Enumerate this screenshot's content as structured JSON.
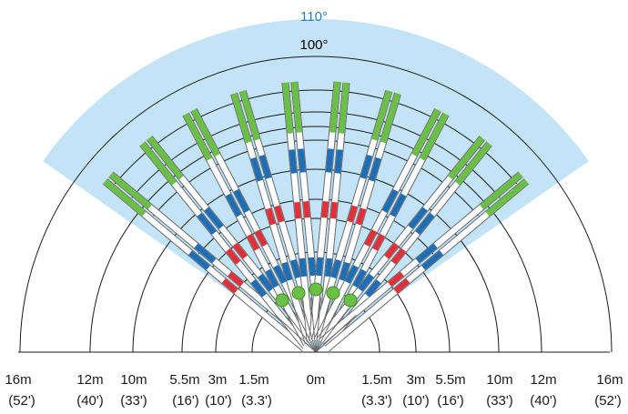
{
  "angles": {
    "outer": {
      "label": "110°",
      "color": "#2a7fc0"
    },
    "inner": {
      "label": "100°",
      "color": "#000000"
    }
  },
  "colors": {
    "fan_fill": "#c3e3f7",
    "green": "#6abf45",
    "blue": "#1f6db5",
    "red": "#e0303a",
    "arc": "#1a1a1a",
    "beam_outline": "#6a6a6a",
    "dot_fill": "#6abf45",
    "dot_stroke": "#3f8a2a"
  },
  "scale_left": [
    {
      "meters": "16m",
      "feet": "(52')"
    },
    {
      "meters": "12m",
      "feet": "(40')"
    },
    {
      "meters": "10m",
      "feet": "(33')"
    },
    {
      "meters": "5.5m",
      "feet": "(16')"
    },
    {
      "meters": "3m",
      "feet": "(10')"
    },
    {
      "meters": "1.5m",
      "feet": "(3.3')"
    }
  ],
  "scale_center": {
    "meters": "0m"
  },
  "scale_right": [
    {
      "meters": "1.5m",
      "feet": "(3.3')"
    },
    {
      "meters": "3m",
      "feet": "(10')"
    },
    {
      "meters": "5.5m",
      "feet": "(16')"
    },
    {
      "meters": "10m",
      "feet": "(33')"
    },
    {
      "meters": "12m",
      "feet": "(40')"
    },
    {
      "meters": "16m",
      "feet": "(52')"
    }
  ]
}
